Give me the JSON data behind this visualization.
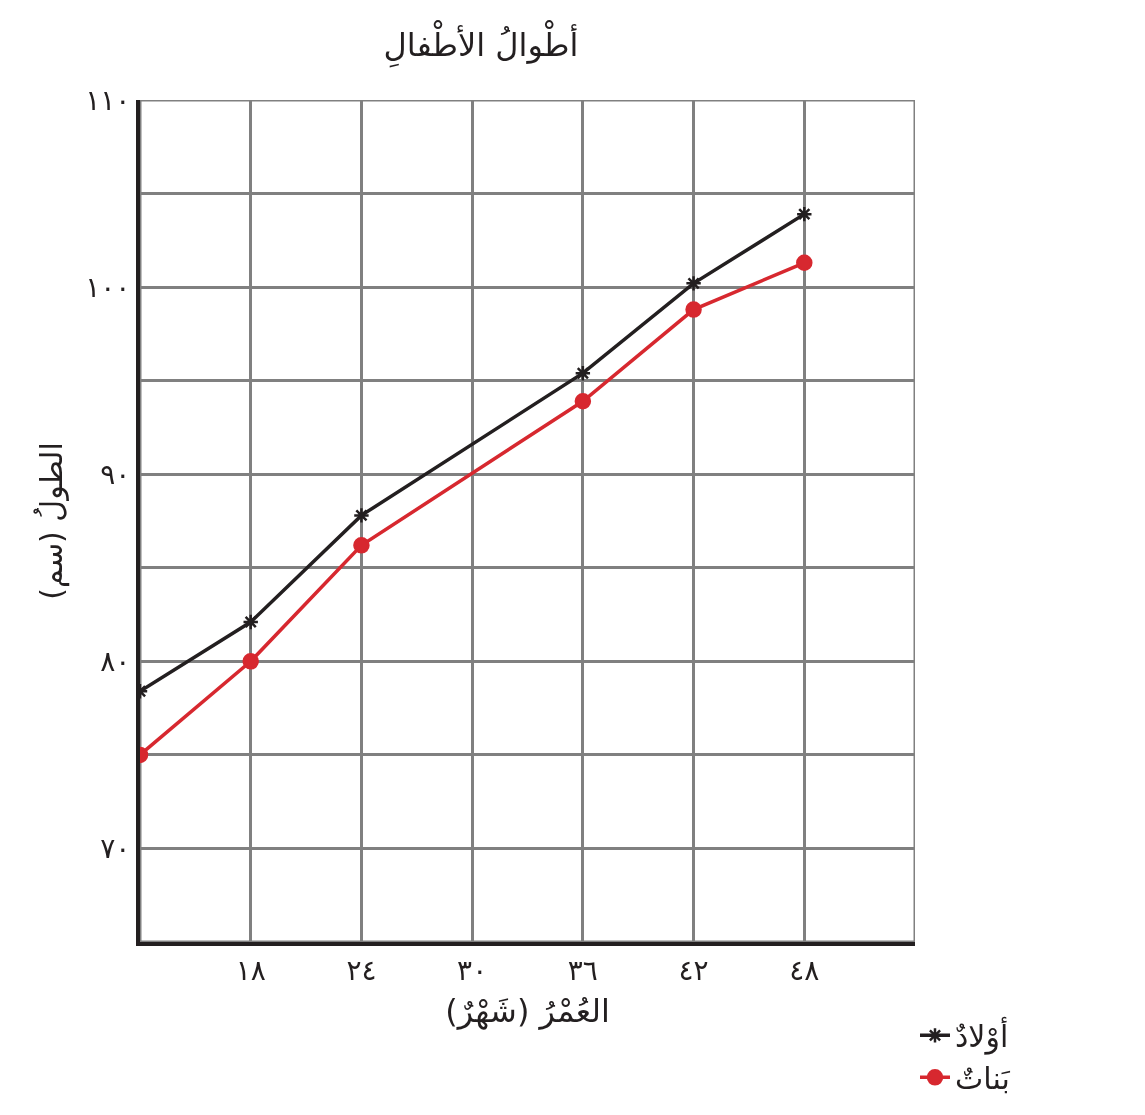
{
  "chart_data": {
    "type": "line",
    "title": "أطْوالُ الأطْفالِ",
    "xlabel": "العُمْرُ (شَهْرٌ)",
    "ylabel": "الطولُ (سم)",
    "x": [
      12,
      18,
      24,
      36,
      42,
      48
    ],
    "series": [
      {
        "name": "أوْلادٌ",
        "color": "#231f20",
        "marker": "cross",
        "values": [
          78.4,
          82.1,
          87.8,
          95.4,
          100.2,
          103.9
        ]
      },
      {
        "name": "بَناتٌ",
        "color": "#d7282f",
        "marker": "circle",
        "values": [
          75,
          80,
          86.2,
          93.9,
          98.8,
          101.3
        ]
      }
    ],
    "xlim": [
      12,
      54
    ],
    "ylim": [
      65,
      110
    ],
    "xticks": [
      {
        "value": 18,
        "label": "١٨"
      },
      {
        "value": 24,
        "label": "٢٤"
      },
      {
        "value": 30,
        "label": "٣٠"
      },
      {
        "value": 36,
        "label": "٣٦"
      },
      {
        "value": 42,
        "label": "٤٢"
      },
      {
        "value": 48,
        "label": "٤٨"
      },
      {
        "value": 54,
        "label": null
      }
    ],
    "yticks": [
      {
        "value": 70,
        "label": "٧٠"
      },
      {
        "value": 75,
        "label": null
      },
      {
        "value": 80,
        "label": "٨٠"
      },
      {
        "value": 85,
        "label": null
      },
      {
        "value": 90,
        "label": "٩٠"
      },
      {
        "value": 95,
        "label": null
      },
      {
        "value": 100,
        "label": "١٠٠"
      },
      {
        "value": 105,
        "label": null
      },
      {
        "value": 110,
        "label": "١١٠"
      }
    ],
    "grid": true,
    "legend": "bottom right",
    "line_style": "solid"
  }
}
